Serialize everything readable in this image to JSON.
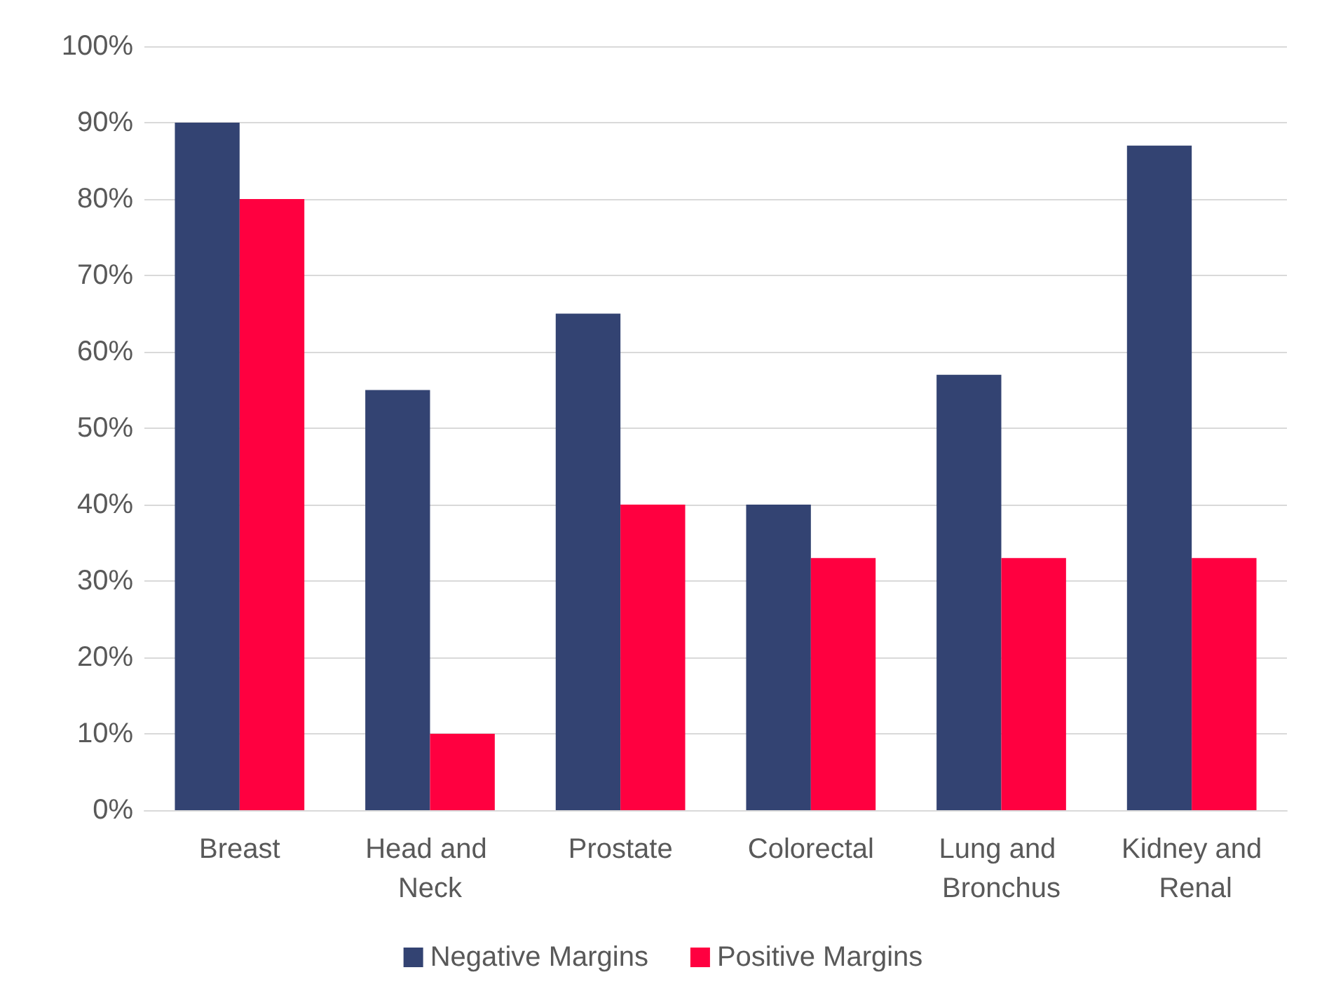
{
  "chart_data": {
    "type": "bar",
    "categories": [
      "Breast",
      "Head and Neck",
      "Prostate",
      "Colorectal",
      "Lung and Bronchus",
      "Kidney and Renal"
    ],
    "series": [
      {
        "name": "Negative Margins",
        "color": "#334372",
        "values": [
          90,
          55,
          65,
          40,
          57,
          87
        ]
      },
      {
        "name": "Positive Margins",
        "color": "#ff0040",
        "values": [
          80,
          10,
          40,
          33,
          33,
          33
        ]
      }
    ],
    "ylim": [
      0,
      100
    ],
    "yticks": [
      {
        "value": 0,
        "label": "0%"
      },
      {
        "value": 10,
        "label": "10%"
      },
      {
        "value": 20,
        "label": "20%"
      },
      {
        "value": 30,
        "label": "30%"
      },
      {
        "value": 40,
        "label": "40%"
      },
      {
        "value": 50,
        "label": "50%"
      },
      {
        "value": 60,
        "label": "60%"
      },
      {
        "value": 70,
        "label": "70%"
      },
      {
        "value": 80,
        "label": "80%"
      },
      {
        "value": 90,
        "label": "90%"
      },
      {
        "value": 100,
        "label": "100%"
      }
    ],
    "grid": "y",
    "legend": "bottom"
  }
}
